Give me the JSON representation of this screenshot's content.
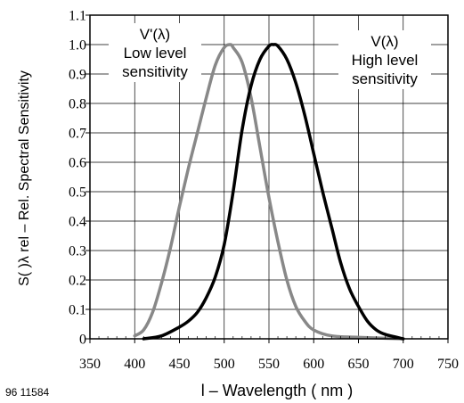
{
  "chart_data": {
    "type": "line",
    "figure_id": "96 11584",
    "xlabel": "l – Wavelength ( nm )",
    "ylabel": "S( )λ rel – Rel. Spectral Sensitivity",
    "xlim": [
      350,
      750
    ],
    "ylim": [
      0,
      1.1
    ],
    "x_ticks": [
      350,
      400,
      450,
      500,
      550,
      600,
      650,
      700,
      750
    ],
    "y_ticks": [
      0,
      0.1,
      0.2,
      0.3,
      0.4,
      0.5,
      0.6,
      0.7,
      0.8,
      0.9,
      1.0,
      1.1
    ],
    "grid": true,
    "annotations": [
      {
        "lines": [
          "V'(λ)",
          "Low level",
          "sensitivity"
        ]
      },
      {
        "lines": [
          "V(λ)",
          "High level",
          "sensitivity"
        ]
      }
    ],
    "series": [
      {
        "color": "#888888",
        "x": [
          400,
          410,
          420,
          430,
          440,
          450,
          460,
          470,
          480,
          490,
          500,
          507,
          510,
          520,
          530,
          540,
          550,
          560,
          570,
          580,
          590,
          600,
          620,
          650,
          700
        ],
        "y": [
          0.01,
          0.03,
          0.09,
          0.19,
          0.31,
          0.45,
          0.58,
          0.7,
          0.82,
          0.93,
          0.99,
          1.0,
          0.99,
          0.94,
          0.82,
          0.65,
          0.48,
          0.33,
          0.2,
          0.11,
          0.06,
          0.03,
          0.01,
          0.005,
          0.0
        ]
      },
      {
        "color": "#000000",
        "x": [
          410,
          430,
          450,
          460,
          470,
          480,
          490,
          500,
          510,
          520,
          530,
          540,
          550,
          555,
          560,
          570,
          580,
          590,
          600,
          610,
          620,
          630,
          640,
          650,
          660,
          670,
          680,
          700
        ],
        "y": [
          0.0,
          0.01,
          0.04,
          0.06,
          0.09,
          0.14,
          0.21,
          0.32,
          0.5,
          0.71,
          0.86,
          0.95,
          0.995,
          1.0,
          0.995,
          0.95,
          0.87,
          0.76,
          0.63,
          0.5,
          0.38,
          0.26,
          0.17,
          0.11,
          0.06,
          0.03,
          0.015,
          0.0
        ]
      }
    ]
  }
}
